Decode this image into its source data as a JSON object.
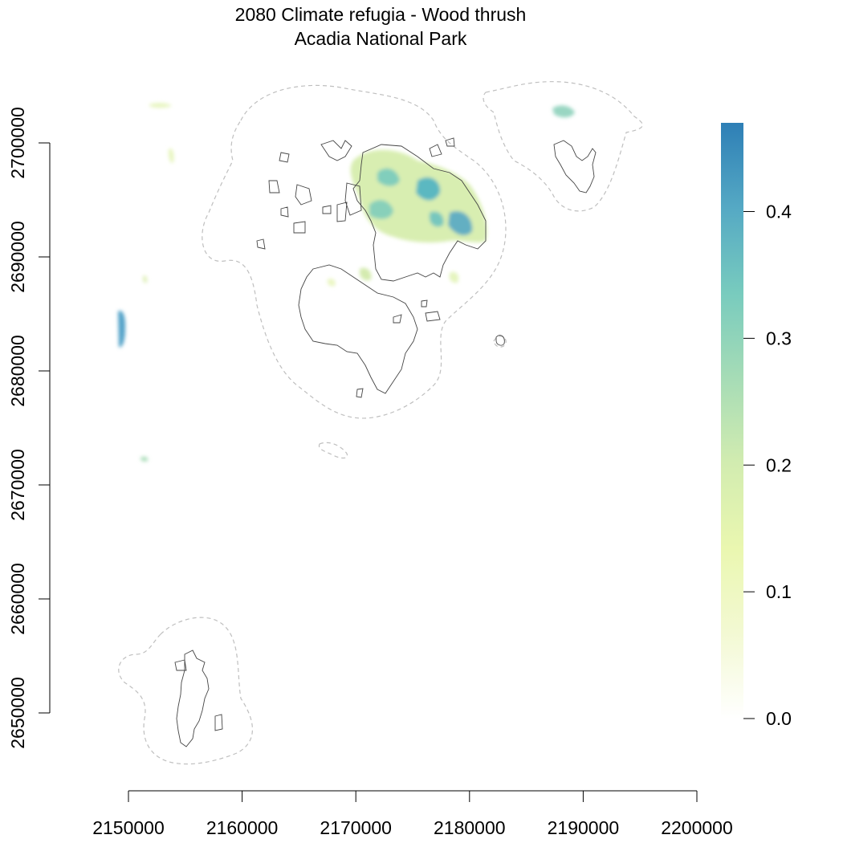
{
  "title": {
    "line1": "2080 Climate refugia - Wood thrush",
    "line2": "Acadia National Park"
  },
  "chart_data": {
    "type": "heatmap",
    "x_axis": {
      "range": [
        2150000,
        2200000
      ],
      "ticks": [
        2150000,
        2160000,
        2170000,
        2180000,
        2190000,
        2200000
      ],
      "tick_labels": [
        "2150000",
        "2160000",
        "2170000",
        "2180000",
        "2190000",
        "2200000"
      ]
    },
    "y_axis": {
      "range": [
        2650000,
        2700000
      ],
      "ticks": [
        2650000,
        2660000,
        2670000,
        2680000,
        2690000,
        2700000
      ],
      "tick_labels": [
        "2650000",
        "2660000",
        "2670000",
        "2680000",
        "2690000",
        "2700000"
      ]
    },
    "legend": {
      "placement": "right",
      "range": [
        0.0,
        0.47
      ],
      "ticks": [
        0.0,
        0.1,
        0.2,
        0.3,
        0.4
      ],
      "tick_labels": [
        "0.0",
        "0.1",
        "0.2",
        "0.3",
        "0.4"
      ],
      "colors": [
        "#ffffff",
        "#f3f9d3",
        "#eaf7b0",
        "#d2ecb0",
        "#a6dcb6",
        "#78cbbe",
        "#55a9c4",
        "#2e7fb6"
      ]
    },
    "layers": {
      "park_boundary": "solid dark gray outline",
      "buffer": "dashed light gray outline",
      "refugia_raster": "suitability values 0 to 0.47"
    }
  }
}
